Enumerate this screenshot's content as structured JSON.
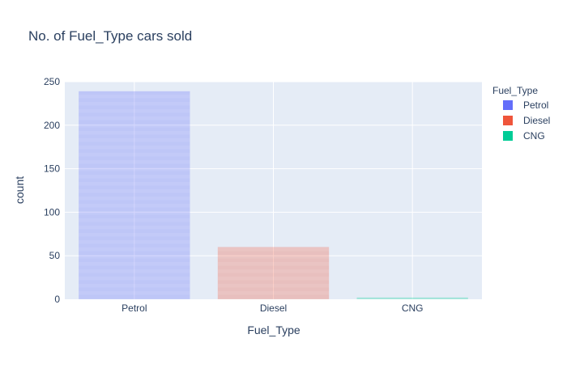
{
  "chart_data": {
    "type": "bar",
    "title": "No. of Fuel_Type cars sold",
    "xlabel": "Fuel_Type",
    "ylabel": "count",
    "categories": [
      "Petrol",
      "Diesel",
      "CNG"
    ],
    "series": [
      {
        "name": "Petrol",
        "values": [
          239,
          null,
          null
        ],
        "color": "#636efa"
      },
      {
        "name": "Diesel",
        "values": [
          null,
          60,
          null
        ],
        "color": "#ef553b"
      },
      {
        "name": "CNG",
        "values": [
          null,
          null,
          2
        ],
        "color": "#00cc96"
      }
    ],
    "ylim": [
      0,
      250
    ],
    "yticks": [
      0,
      50,
      100,
      150,
      200,
      250
    ],
    "grid": true,
    "legend": {
      "title": "Fuel_Type",
      "placement": "right"
    },
    "colors": {
      "plot_background": "#e5ecf6",
      "grid": "#ffffff",
      "text": "#2a3f5f"
    }
  }
}
